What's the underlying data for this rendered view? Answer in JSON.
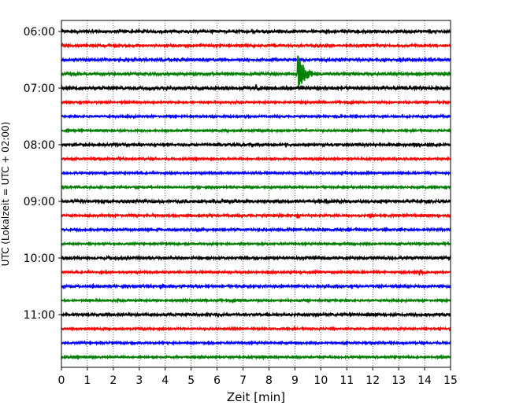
{
  "chart_data": {
    "type": "line",
    "subtype": "seismogram-helicorder",
    "xlabel": "Zeit  [min]",
    "ylabel": "UTC (Lokalzeit = UTC + 02:00)",
    "xlim": [
      0,
      15
    ],
    "x_ticks": [
      0,
      1,
      2,
      3,
      4,
      5,
      6,
      7,
      8,
      9,
      10,
      11,
      12,
      13,
      14,
      15
    ],
    "x_tick_labels": [
      "0",
      "1",
      "2",
      "3",
      "4",
      "5",
      "6",
      "7",
      "8",
      "9",
      "10",
      "11",
      "12",
      "13",
      "14",
      "15"
    ],
    "grid": "vertical-dotted",
    "line_start_minutes_utc": [
      "06:00",
      "06:15",
      "06:30",
      "06:45",
      "07:00",
      "07:15",
      "07:30",
      "07:45",
      "08:00",
      "08:15",
      "08:30",
      "08:45",
      "09:00",
      "09:15",
      "09:30",
      "09:45",
      "10:00",
      "10:15",
      "10:30",
      "10:45",
      "11:00",
      "11:15",
      "11:30",
      "11:45"
    ],
    "y_tick_labels": [
      "06:00",
      "07:00",
      "08:00",
      "09:00",
      "10:00",
      "11:00"
    ],
    "y_tick_line_index": [
      0,
      4,
      8,
      12,
      16,
      20
    ],
    "line_colors": [
      "#000000",
      "#ff0000",
      "#0000ff",
      "#008000"
    ],
    "noise_amplitude": [
      0.08,
      0.06,
      0.07,
      0.07,
      0.09,
      0.05,
      0.05,
      0.05,
      0.07,
      0.05,
      0.05,
      0.05,
      0.08,
      0.06,
      0.06,
      0.05,
      0.07,
      0.05,
      0.06,
      0.05,
      0.07,
      0.05,
      0.05,
      0.05
    ],
    "events": [
      {
        "line": 3,
        "minute": 9.1,
        "amplitude": 1.5,
        "duration_min": 1.4
      },
      {
        "line": 4,
        "minute": 7.5,
        "amplitude": 0.2,
        "duration_min": 1.2
      },
      {
        "line": 12,
        "minute": 7.2,
        "amplitude": 0.14,
        "duration_min": 0.5
      },
      {
        "line": 13,
        "minute": 11.9,
        "amplitude": 0.3,
        "duration_min": 0.6
      },
      {
        "line": 13,
        "minute": 9.1,
        "amplitude": 0.18,
        "duration_min": 0.4
      },
      {
        "line": 10,
        "minute": 9.6,
        "amplitude": 0.15,
        "duration_min": 0.5
      },
      {
        "line": 17,
        "minute": 13.8,
        "amplitude": 0.25,
        "duration_min": 0.8
      },
      {
        "line": 18,
        "minute": 1.2,
        "amplitude": 0.2,
        "duration_min": 0.4
      },
      {
        "line": 18,
        "minute": 3.8,
        "amplitude": 0.18,
        "duration_min": 0.4
      },
      {
        "line": 1,
        "minute": 9.9,
        "amplitude": 0.12,
        "duration_min": 0.4
      },
      {
        "line": 2,
        "minute": 7.0,
        "amplitude": 0.12,
        "duration_min": 0.3
      }
    ]
  }
}
